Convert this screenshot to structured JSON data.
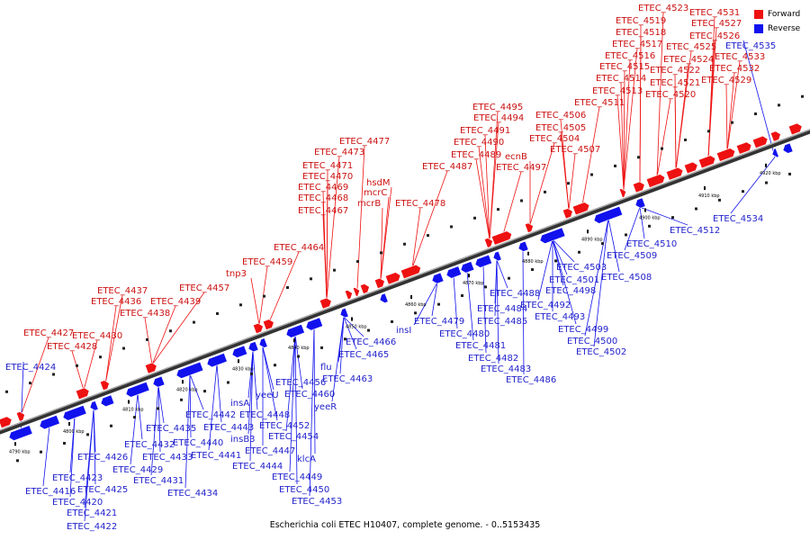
{
  "caption": "Escherichia coli ETEC H10407, complete genome. - 0..5153435",
  "legend": [
    {
      "label": "Forward",
      "color": "#ee1111"
    },
    {
      "label": "Reverse",
      "color": "#1111ee"
    }
  ],
  "ticks": [
    "4790 kbp",
    "4800 kbp",
    "4810 kbp",
    "4820 kbp",
    "4830 kbp",
    "4840 kbp",
    "4850 kbp",
    "4860 kbp",
    "4870 kbp",
    "4880 kbp",
    "4890 kbp",
    "4900 kbp",
    "4910 kbp",
    "4920 kbp"
  ],
  "forward_labels": [
    "ETEC_4427",
    "ETEC_4428",
    "ETEC_4430",
    "ETEC_4437",
    "ETEC_4436",
    "ETEC_4438",
    "ETEC_4439",
    "ETEC_4457",
    "tnp3",
    "ETEC_4459",
    "ETEC_4464",
    "ETEC_4477",
    "ETEC_4473",
    "ETEC_4471",
    "ETEC_4470",
    "ETEC_4469",
    "ETEC_4468",
    "ETEC_4467",
    "hsdM",
    "mcrC",
    "mcrB",
    "ETEC_4478",
    "ETEC_4495",
    "ETEC_4494",
    "ETEC_4491",
    "ETEC_4490",
    "ETEC_4489",
    "ETEC_4487",
    "ecnB",
    "ETEC_4497",
    "ETEC_4506",
    "ETEC_4505",
    "ETEC_4504",
    "ETEC_4507",
    "ETEC_4511",
    "ETEC_4513",
    "ETEC_4514",
    "ETEC_4515",
    "ETEC_4516",
    "ETEC_4517",
    "ETEC_4518",
    "ETEC_4519",
    "ETEC_4523",
    "ETEC_4531",
    "ETEC_4527",
    "ETEC_4526",
    "ETEC_4525",
    "ETEC_4524",
    "ETEC_4522",
    "ETEC_4521",
    "ETEC_4520",
    "ETEC_4533",
    "ETEC_4532",
    "ETEC_4529"
  ],
  "reverse_labels": [
    "ETEC_4424",
    "ETEC_4416",
    "ETEC_4420",
    "ETEC_4421",
    "ETEC_4422",
    "ETEC_4423",
    "ETEC_4425",
    "ETEC_4426",
    "ETEC_4429",
    "ETEC_4431",
    "ETEC_4432",
    "ETEC_4433",
    "ETEC_4434",
    "ETEC_4435",
    "ETEC_4440",
    "ETEC_4441",
    "ETEC_4442",
    "ETEC_4443",
    "ETEC_4444",
    "insA",
    "insB3",
    "yeeU",
    "ETEC_4447",
    "ETEC_4448",
    "ETEC_4449",
    "ETEC_4450",
    "ETEC_4452",
    "ETEC_4453",
    "ETEC_4454",
    "ETEC_4456",
    "ETEC_4460",
    "yeeR",
    "flu",
    "ETEC_4463",
    "klcA",
    "ETEC_4465",
    "ETEC_4466",
    "insI",
    "ETEC_4479",
    "ETEC_4480",
    "ETEC_4481",
    "ETEC_4482",
    "ETEC_4483",
    "ETEC_4484",
    "ETEC_4485",
    "ETEC_4486",
    "ETEC_4488",
    "ETEC_4492",
    "ETEC_4493",
    "ETEC_4498",
    "ETEC_4499",
    "ETEC_4500",
    "ETEC_4501",
    "ETEC_4502",
    "ETEC_4503",
    "ETEC_4508",
    "ETEC_4509",
    "ETEC_4510",
    "ETEC_4512",
    "ETEC_4534",
    "ETEC_4535"
  ]
}
